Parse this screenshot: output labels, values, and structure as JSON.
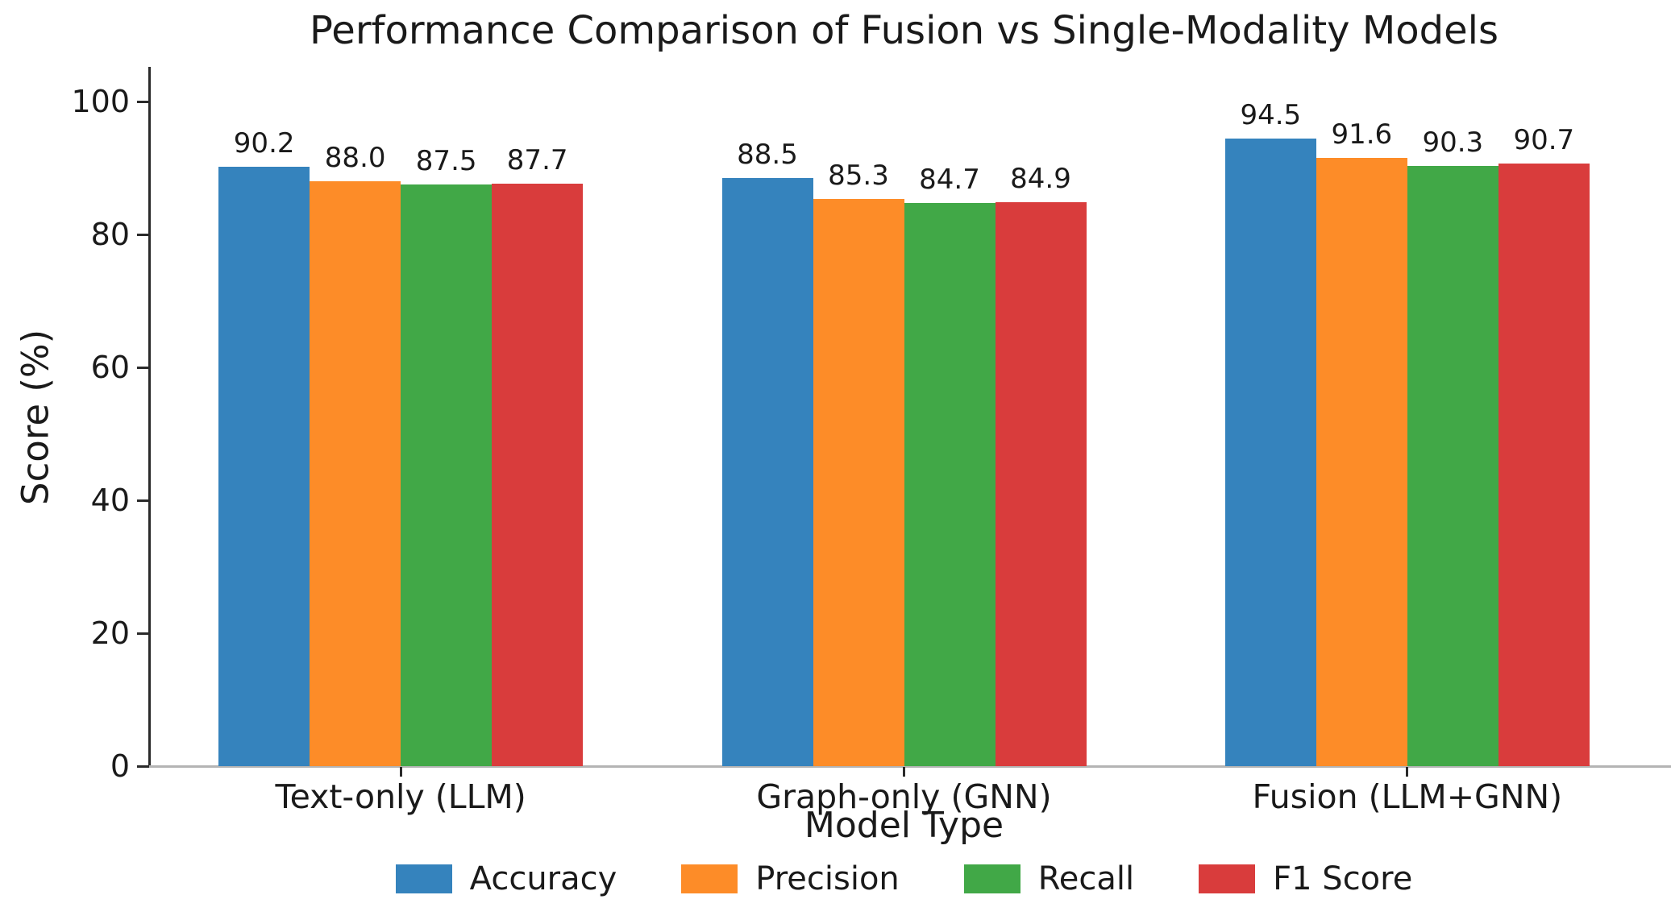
{
  "chart_data": {
    "type": "bar",
    "title": "Performance Comparison of Fusion vs Single-Modality Models",
    "xlabel": "Model Type",
    "ylabel": "Score (%)",
    "categories": [
      "Text-only (LLM)",
      "Graph-only (GNN)",
      "Fusion (LLM+GNN)"
    ],
    "series": [
      {
        "name": "Accuracy",
        "color": "#3583bd",
        "values": [
          90.2,
          88.5,
          94.5
        ]
      },
      {
        "name": "Precision",
        "color": "#fd8c28",
        "values": [
          88.0,
          85.3,
          91.6
        ]
      },
      {
        "name": "Recall",
        "color": "#41a847",
        "values": [
          87.5,
          84.7,
          90.3
        ]
      },
      {
        "name": "F1 Score",
        "color": "#d93c3c",
        "values": [
          87.7,
          84.9,
          90.7
        ]
      }
    ],
    "ylim": [
      0,
      105
    ],
    "yticks": [
      0,
      20,
      40,
      60,
      80,
      100
    ],
    "bar_value_labels": true,
    "value_label_decimals": 1,
    "legend_position": "bottom",
    "grid": false,
    "colors": {
      "axis_left_spine": "#2a2a2a",
      "axis_bottom_spine": "#b4b4b4",
      "text": "#1a1a1a",
      "background": "#ffffff"
    }
  }
}
